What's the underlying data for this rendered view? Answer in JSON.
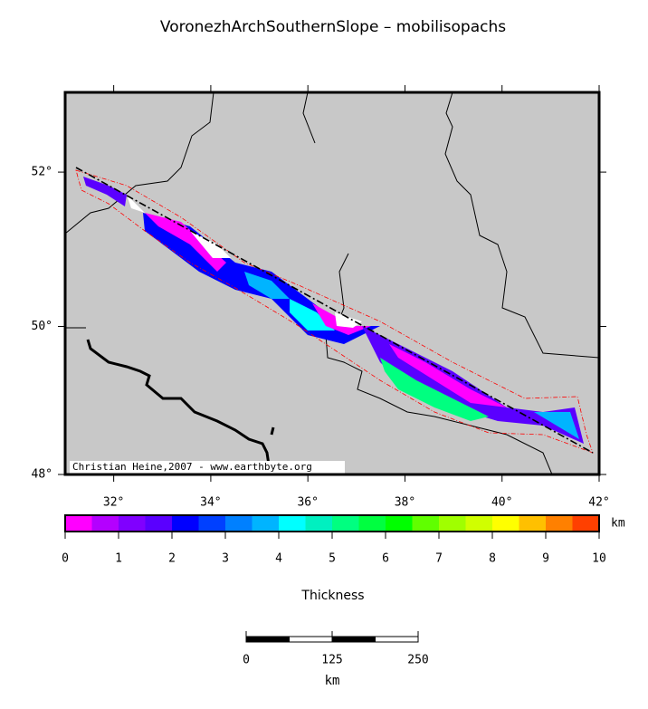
{
  "title": "VoronezhArchSouthernSlope – mobilisopachs",
  "map": {
    "lonlim": [
      31,
      42
    ],
    "latlim": [
      48,
      53
    ],
    "lon_ticks": [
      {
        "value": 32,
        "label": "32°"
      },
      {
        "value": 34,
        "label": "34°"
      },
      {
        "value": 36,
        "label": "36°"
      },
      {
        "value": 38,
        "label": "38°"
      },
      {
        "value": 40,
        "label": "40°"
      },
      {
        "value": 42,
        "label": "42°"
      }
    ],
    "lat_ticks": [
      {
        "value": 48,
        "label": "48°"
      },
      {
        "value": 50,
        "label": "50°"
      },
      {
        "value": 52,
        "label": "52°"
      }
    ],
    "credit": "Christian Heine,2007 - www.earthbyte.org"
  },
  "colorbar": {
    "range": [
      0,
      10
    ],
    "ticks": [
      0,
      1,
      2,
      3,
      4,
      5,
      6,
      7,
      8,
      9,
      10
    ],
    "unit": "km",
    "label": "Thickness",
    "colors": [
      "#ff00ff",
      "#b400ff",
      "#8000ff",
      "#5a00ff",
      "#0000ff",
      "#0040ff",
      "#0080ff",
      "#00b4ff",
      "#00ffff",
      "#00f0c0",
      "#00ff80",
      "#00ff40",
      "#00ff00",
      "#60ff00",
      "#a0ff00",
      "#d0ff00",
      "#ffff00",
      "#ffc000",
      "#ff8000",
      "#ff4000"
    ]
  },
  "scalebar": {
    "range": [
      0,
      250
    ],
    "ticks": [
      0,
      125,
      250
    ],
    "unit": "km"
  }
}
